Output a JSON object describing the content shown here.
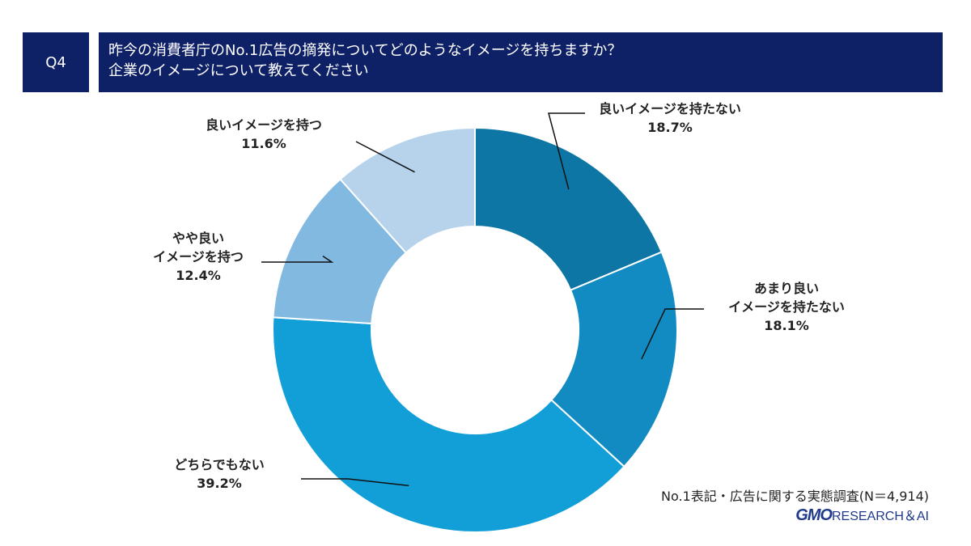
{
  "header": {
    "question_no": "Q4",
    "title_line1": "昨今の消費者庁のNo.1広告の摘発についてどのようなイメージを持ちますか？",
    "title_line2": "企業のイメージについて教えてください"
  },
  "footer": {
    "survey_note": "No.1表記・広告に関する実態調査(N＝4,914)",
    "logo_gmo": "GMO",
    "logo_rest": "RESEARCH＆AI"
  },
  "chart_data": {
    "type": "pie",
    "donut": true,
    "title": "昨今の消費者庁のNo.1広告の摘発についてどのようなイメージを持ちますか？",
    "unit": "%",
    "slices": [
      {
        "label": "良いイメージを持たない",
        "lines": [
          "良いイメージを持たない"
        ],
        "value": 18.7,
        "value_label": "18.7%",
        "color": "#0d76a4"
      },
      {
        "label": "あまり良いイメージを持たない",
        "lines": [
          "あまり良い",
          "イメージを持たない"
        ],
        "value": 18.1,
        "value_label": "18.1%",
        "color": "#118bc1"
      },
      {
        "label": "どちらでもない",
        "lines": [
          "どちらでもない"
        ],
        "value": 39.2,
        "value_label": "39.2%",
        "color": "#129fd8"
      },
      {
        "label": "やや良いイメージを持つ",
        "lines": [
          "やや良い",
          "イメージを持つ"
        ],
        "value": 12.4,
        "value_label": "12.4%",
        "color": "#82b9e0"
      },
      {
        "label": "良いイメージを持つ",
        "lines": [
          "良いイメージを持つ"
        ],
        "value": 11.6,
        "value_label": "11.6%",
        "color": "#b7d3ec"
      }
    ]
  }
}
